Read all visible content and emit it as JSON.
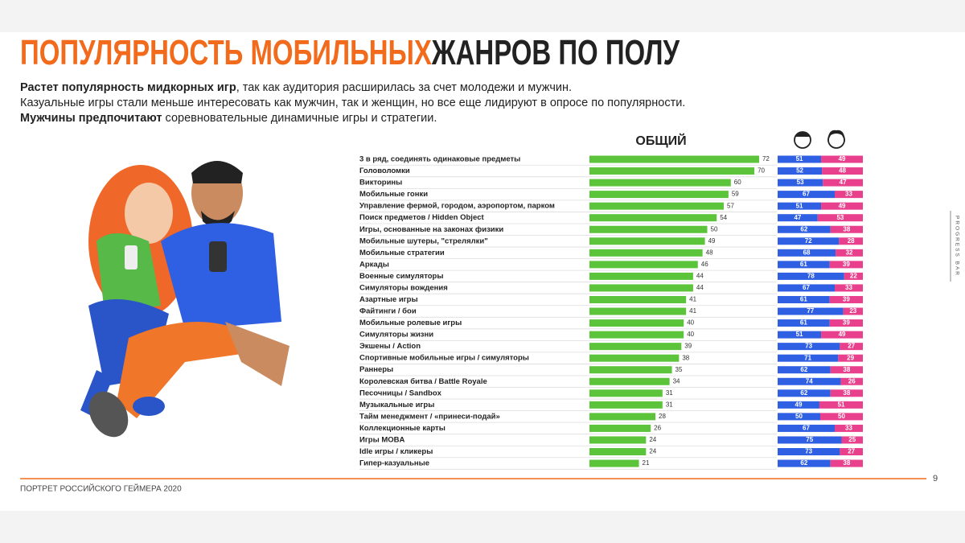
{
  "slide": {
    "title_part1": "ПОПУЛЯРНОСТЬ МОБИЛЬНЫХ",
    "title_part2": "ЖАНРОВ ПО ПОЛУ",
    "intro": [
      [
        "Растет популярность мидкорных игр",
        ", так как аудитория расширилась за счет молодежи и мужчин."
      ],
      [
        "Казуальные игры стали меньше интересовать как мужчин, так и женщин, но все еще лидируют в опросе по популярности."
      ],
      [
        "Мужчины предпочитают",
        " соревновательные динамичные игры и стратегии."
      ]
    ],
    "footer": "ПОРТРЕТ РОССИЙСКОГО ГЕЙМЕРА 2020",
    "page_number": "9",
    "side_label": "PROGRESS BAR"
  },
  "chart_data": [
    {
      "type": "bar",
      "title": "ОБЩИЙ",
      "color": "#5cc43b",
      "categories": [
        "3 в ряд, соединять одинаковые предметы",
        "Головоломки",
        "Викторины",
        "Мобильные гонки",
        "Управление фермой, городом, аэропортом, парком",
        "Поиск предметов / Hidden Object",
        "Игры, основанные на законах физики",
        "Мобильные шутеры, \"стрелялки\"",
        "Мобильные стратегии",
        "Аркады",
        "Военные симуляторы",
        "Симуляторы вождения",
        "Азартные игры",
        "Файтинги / бои",
        "Мобильные ролевые игры",
        "Симуляторы жизни",
        "Экшены / Action",
        "Спортивные мобильные игры / симуляторы",
        "Раннеры",
        "Королевская битва / Battle Royale",
        "Песочницы / Sandbox",
        "Музыкальные игры",
        "Тайм менеджмент / «принеси-подай»",
        "Коллекционные карты",
        "Игры MOBA",
        "Idle игры / кликеры",
        "Гипер-казуальные"
      ],
      "values": [
        72,
        70,
        60,
        59,
        57,
        54,
        50,
        49,
        48,
        46,
        44,
        44,
        41,
        41,
        40,
        40,
        39,
        38,
        35,
        34,
        31,
        31,
        28,
        26,
        24,
        24,
        21
      ]
    },
    {
      "type": "stacked_bar",
      "series": [
        {
          "color": "#2f5fe3",
          "values": [
            51,
            52,
            53,
            67,
            51,
            47,
            62,
            72,
            68,
            61,
            78,
            67,
            61,
            77,
            61,
            51,
            73,
            71,
            62,
            74,
            62,
            49,
            50,
            67,
            75,
            73,
            62
          ]
        },
        {
          "color": "#e8408c",
          "values": [
            49,
            48,
            47,
            33,
            49,
            53,
            38,
            28,
            32,
            39,
            22,
            33,
            39,
            23,
            39,
            49,
            27,
            29,
            38,
            26,
            38,
            51,
            50,
            33,
            25,
            27,
            38
          ]
        }
      ]
    }
  ]
}
